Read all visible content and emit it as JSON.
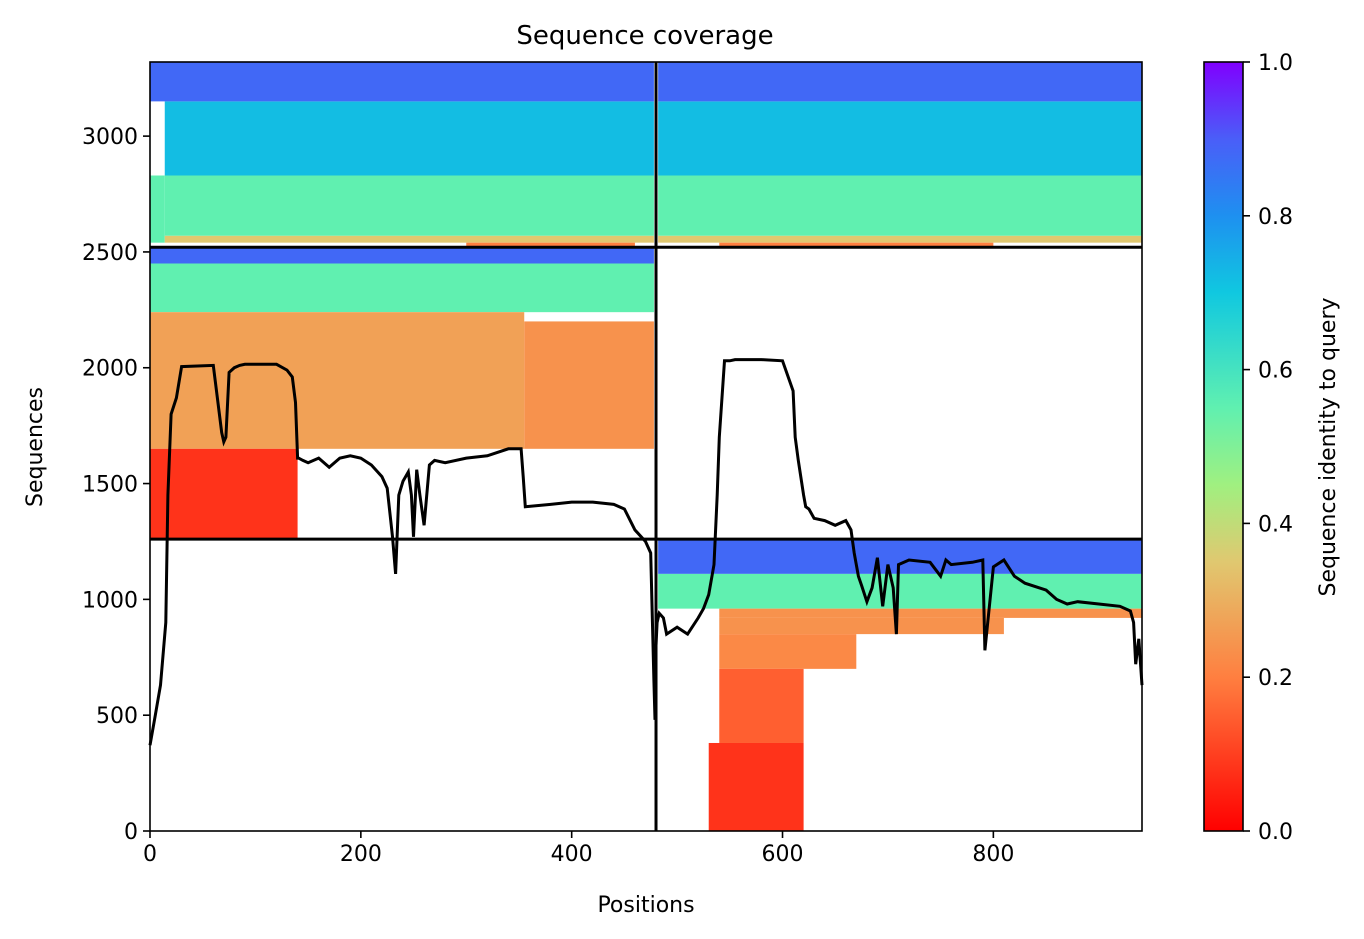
{
  "chart_data": {
    "type": "heatmap",
    "title": "Sequence coverage",
    "xlabel": "Positions",
    "ylabel": "Sequences",
    "xlim": [
      0,
      941
    ],
    "ylim": [
      0,
      3320
    ],
    "xticks": [
      0,
      200,
      400,
      600,
      800
    ],
    "yticks": [
      0,
      500,
      1000,
      1500,
      2000,
      2500,
      3000
    ],
    "colorbar": {
      "label": "Sequence identity to query",
      "range": [
        0.0,
        1.0
      ],
      "ticks": [
        0.0,
        0.2,
        0.4,
        0.6,
        0.8,
        1.0
      ],
      "colormap": "rainbow_r"
    },
    "block_boundaries": {
      "x": 480,
      "y": [
        1260,
        2520
      ]
    },
    "coverage_blocks": [
      {
        "x0": 0,
        "x1": 14,
        "y0": 2540,
        "y1": 2830,
        "id": 0.55
      },
      {
        "x0": 14,
        "x1": 478,
        "y0": 2540,
        "y1": 2570,
        "id": 0.35
      },
      {
        "x0": 14,
        "x1": 478,
        "y0": 2570,
        "y1": 2830,
        "id": 0.55
      },
      {
        "x0": 14,
        "x1": 478,
        "y0": 2830,
        "y1": 3150,
        "id": 0.72
      },
      {
        "x0": 0,
        "x1": 478,
        "y0": 3150,
        "y1": 3320,
        "id": 0.88
      },
      {
        "x0": 300,
        "x1": 460,
        "y0": 2520,
        "y1": 2540,
        "id": 0.2
      },
      {
        "x0": 482,
        "x1": 941,
        "y0": 2540,
        "y1": 2570,
        "id": 0.35
      },
      {
        "x0": 482,
        "x1": 941,
        "y0": 2570,
        "y1": 2830,
        "id": 0.55
      },
      {
        "x0": 482,
        "x1": 941,
        "y0": 2830,
        "y1": 3150,
        "id": 0.72
      },
      {
        "x0": 482,
        "x1": 941,
        "y0": 3150,
        "y1": 3320,
        "id": 0.88
      },
      {
        "x0": 540,
        "x1": 800,
        "y0": 2520,
        "y1": 2540,
        "id": 0.2
      },
      {
        "x0": 0,
        "x1": 478,
        "y0": 2450,
        "y1": 2520,
        "id": 0.88
      },
      {
        "x0": 0,
        "x1": 478,
        "y0": 2240,
        "y1": 2450,
        "id": 0.55
      },
      {
        "x0": 0,
        "x1": 355,
        "y0": 1650,
        "y1": 2240,
        "id": 0.27
      },
      {
        "x0": 355,
        "x1": 478,
        "y0": 1650,
        "y1": 2200,
        "id": 0.24
      },
      {
        "x0": 0,
        "x1": 140,
        "y0": 1260,
        "y1": 1650,
        "id": 0.08
      },
      {
        "x0": 482,
        "x1": 941,
        "y0": 1110,
        "y1": 1260,
        "id": 0.88
      },
      {
        "x0": 482,
        "x1": 941,
        "y0": 960,
        "y1": 1110,
        "id": 0.55
      },
      {
        "x0": 540,
        "x1": 941,
        "y0": 920,
        "y1": 960,
        "id": 0.24
      },
      {
        "x0": 540,
        "x1": 810,
        "y0": 850,
        "y1": 920,
        "id": 0.24
      },
      {
        "x0": 540,
        "x1": 670,
        "y0": 700,
        "y1": 850,
        "id": 0.22
      },
      {
        "x0": 540,
        "x1": 620,
        "y0": 380,
        "y1": 700,
        "id": 0.15
      },
      {
        "x0": 530,
        "x1": 620,
        "y0": 0,
        "y1": 380,
        "id": 0.08
      }
    ],
    "coverage_line": {
      "x": [
        0,
        5,
        10,
        15,
        17,
        20,
        25,
        30,
        60,
        68,
        70,
        72,
        75,
        80,
        85,
        90,
        100,
        120,
        130,
        135,
        138,
        140,
        141,
        145,
        150,
        160,
        170,
        180,
        190,
        200,
        210,
        220,
        225,
        230,
        233,
        236,
        240,
        245,
        248,
        250,
        253,
        256,
        260,
        265,
        270,
        280,
        300,
        320,
        340,
        352,
        354,
        356,
        380,
        400,
        420,
        440,
        450,
        460,
        470,
        475,
        478,
        479,
        480,
        481,
        483,
        487,
        490,
        500,
        510,
        520,
        525,
        530,
        535,
        538,
        540,
        545,
        550,
        555,
        560,
        580,
        600,
        610,
        612,
        615,
        620,
        622,
        625,
        630,
        640,
        650,
        660,
        665,
        668,
        670,
        672,
        675,
        680,
        685,
        690,
        695,
        700,
        705,
        708,
        710,
        720,
        740,
        750,
        755,
        760,
        780,
        790,
        792,
        800,
        810,
        820,
        830,
        850,
        860,
        870,
        880,
        900,
        920,
        930,
        933,
        935,
        938,
        941
      ],
      "y": [
        370,
        500,
        630,
        900,
        1450,
        1800,
        1870,
        2005,
        2010,
        1720,
        1680,
        1700,
        1980,
        2000,
        2010,
        2015,
        2015,
        2015,
        1990,
        1960,
        1850,
        1610,
        1610,
        1600,
        1590,
        1610,
        1570,
        1610,
        1620,
        1610,
        1580,
        1530,
        1480,
        1270,
        1110,
        1450,
        1510,
        1550,
        1450,
        1270,
        1560,
        1450,
        1320,
        1580,
        1600,
        1590,
        1610,
        1620,
        1650,
        1650,
        1530,
        1400,
        1410,
        1420,
        1420,
        1410,
        1390,
        1300,
        1250,
        1200,
        650,
        480,
        800,
        900,
        940,
        920,
        850,
        880,
        850,
        920,
        960,
        1020,
        1150,
        1450,
        1700,
        2030,
        2030,
        2035,
        2035,
        2035,
        2030,
        1900,
        1700,
        1600,
        1450,
        1400,
        1390,
        1350,
        1340,
        1320,
        1340,
        1300,
        1200,
        1150,
        1100,
        1060,
        990,
        1050,
        1180,
        970,
        1150,
        1050,
        850,
        1150,
        1170,
        1160,
        1100,
        1170,
        1150,
        1160,
        1170,
        780,
        1140,
        1170,
        1100,
        1070,
        1040,
        1000,
        980,
        990,
        980,
        970,
        950,
        900,
        720,
        830,
        630
      ]
    }
  }
}
